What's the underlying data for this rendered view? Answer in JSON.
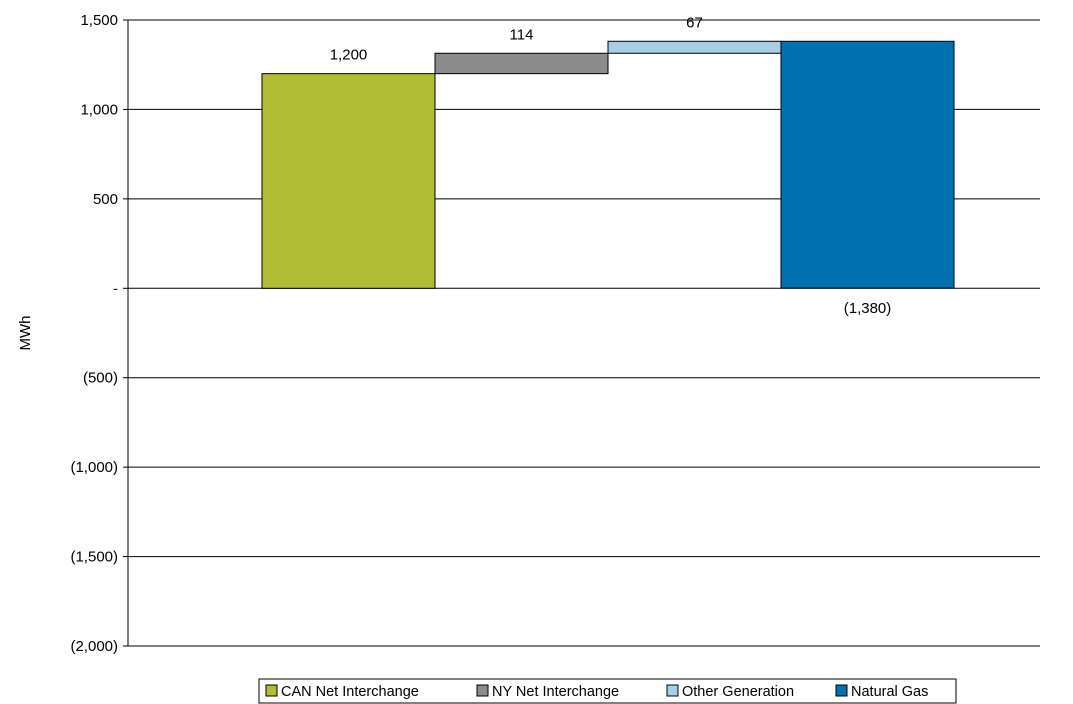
{
  "chart_data": {
    "type": "bar",
    "title": "",
    "xlabel": "",
    "ylabel": "MWh",
    "ylim": [
      -2000,
      1500
    ],
    "yticks": [
      1500,
      1000,
      500,
      0,
      -500,
      -1000,
      -1500,
      -2000
    ],
    "ytick_labels": [
      "1,500",
      "1,000",
      "500",
      "-",
      "(500)",
      "(1,000)",
      "(1,500)",
      "(2,000)"
    ],
    "grid": true,
    "legend_position": "bottom",
    "series": [
      {
        "name": "CAN Net Interchange",
        "value": 1200,
        "label": "1,200",
        "color": "#b2bd35"
      },
      {
        "name": "NY Net Interchange",
        "value": 114,
        "label": "114",
        "color": "#8c8c8e"
      },
      {
        "name": "Other Generation",
        "value": 67,
        "label": "67",
        "color": "#a6cfe6"
      },
      {
        "name": "Natural Gas",
        "value": -1380,
        "label": "(1,380)",
        "color": "#0070ae"
      }
    ]
  }
}
